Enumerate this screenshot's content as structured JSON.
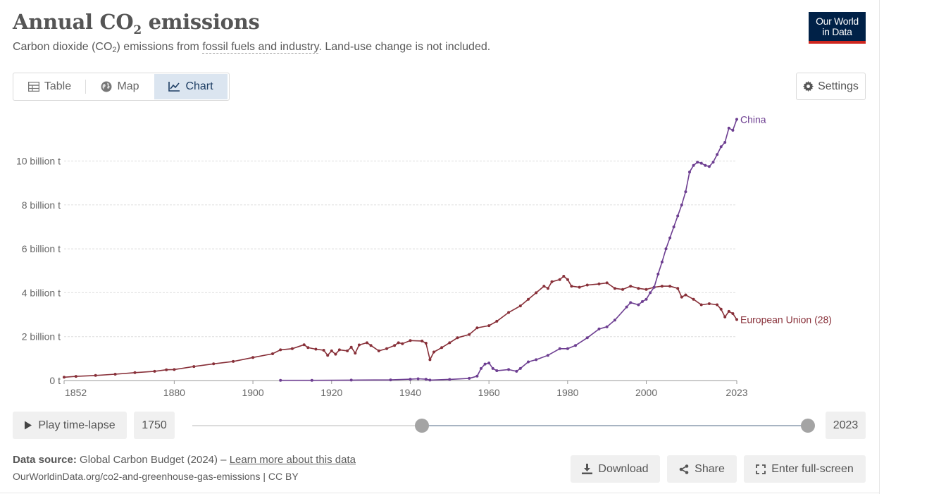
{
  "header": {
    "title_pre": "Annual CO",
    "title_sub": "2",
    "title_post": " emissions",
    "subtitle_pre": "Carbon dioxide (CO",
    "subtitle_sub": "2",
    "subtitle_mid": ") emissions from ",
    "subtitle_link": "fossil fuels and industry",
    "subtitle_post": ". Land-use change is not included.",
    "logo_line1": "Our World",
    "logo_line2": "in Data"
  },
  "tabs": [
    {
      "label": "Table",
      "icon": "table-icon"
    },
    {
      "label": "Map",
      "icon": "globe-icon"
    },
    {
      "label": "Chart",
      "icon": "line-chart-icon",
      "active": true
    }
  ],
  "settings_label": "Settings",
  "timeline": {
    "play_label": "Play time-lapse",
    "start_year": "1750",
    "end_year": "2023",
    "selected_start": 1852,
    "selected_end": 2023
  },
  "footer": {
    "source_label": "Data source:",
    "source_text": " Global Carbon Budget (2024) – ",
    "learn_more": "Learn more about this data",
    "url_text": "OurWorldinData.org/co2-and-greenhouse-gas-emissions | CC BY",
    "download_label": "Download",
    "share_label": "Share",
    "fullscreen_label": "Enter full-screen"
  },
  "colors": {
    "china": "#6d3e91",
    "eu": "#883039",
    "grid": "#dddddd",
    "active_tab": "#dbe5f0",
    "logo_bg": "#002147",
    "logo_accent": "#ce261e"
  },
  "chart_data": {
    "type": "line",
    "xlim": [
      1852,
      2023
    ],
    "ylim": [
      0,
      12000000000
    ],
    "y_ticks": [
      {
        "value": 0,
        "label": "0 t"
      },
      {
        "value": 2000000000,
        "label": "2 billion t"
      },
      {
        "value": 4000000000,
        "label": "4 billion t"
      },
      {
        "value": 6000000000,
        "label": "6 billion t"
      },
      {
        "value": 8000000000,
        "label": "8 billion t"
      },
      {
        "value": 10000000000,
        "label": "10 billion t"
      }
    ],
    "x_ticks": [
      1852,
      1880,
      1900,
      1920,
      1940,
      1960,
      1980,
      2000,
      2023
    ],
    "grid": true,
    "series": [
      {
        "name": "European Union (28)",
        "color": "#883039",
        "points": [
          [
            1852,
            0.15
          ],
          [
            1855,
            0.19
          ],
          [
            1860,
            0.23
          ],
          [
            1865,
            0.29
          ],
          [
            1870,
            0.36
          ],
          [
            1875,
            0.42
          ],
          [
            1878,
            0.49
          ],
          [
            1880,
            0.5
          ],
          [
            1885,
            0.64
          ],
          [
            1890,
            0.76
          ],
          [
            1895,
            0.87
          ],
          [
            1900,
            1.05
          ],
          [
            1905,
            1.22
          ],
          [
            1907,
            1.4
          ],
          [
            1910,
            1.45
          ],
          [
            1913,
            1.63
          ],
          [
            1914,
            1.5
          ],
          [
            1916,
            1.43
          ],
          [
            1918,
            1.38
          ],
          [
            1919,
            1.15
          ],
          [
            1920,
            1.35
          ],
          [
            1921,
            1.2
          ],
          [
            1922,
            1.4
          ],
          [
            1924,
            1.35
          ],
          [
            1925,
            1.52
          ],
          [
            1926,
            1.25
          ],
          [
            1927,
            1.62
          ],
          [
            1929,
            1.72
          ],
          [
            1930,
            1.6
          ],
          [
            1932,
            1.35
          ],
          [
            1934,
            1.45
          ],
          [
            1936,
            1.6
          ],
          [
            1937,
            1.72
          ],
          [
            1938,
            1.68
          ],
          [
            1940,
            1.82
          ],
          [
            1943,
            1.8
          ],
          [
            1944,
            1.7
          ],
          [
            1945,
            0.95
          ],
          [
            1946,
            1.3
          ],
          [
            1948,
            1.5
          ],
          [
            1950,
            1.72
          ],
          [
            1952,
            1.95
          ],
          [
            1955,
            2.1
          ],
          [
            1957,
            2.4
          ],
          [
            1960,
            2.5
          ],
          [
            1962,
            2.7
          ],
          [
            1965,
            3.1
          ],
          [
            1968,
            3.4
          ],
          [
            1970,
            3.7
          ],
          [
            1972,
            4.0
          ],
          [
            1974,
            4.3
          ],
          [
            1975,
            4.2
          ],
          [
            1976,
            4.5
          ],
          [
            1978,
            4.6
          ],
          [
            1979,
            4.75
          ],
          [
            1980,
            4.6
          ],
          [
            1981,
            4.3
          ],
          [
            1983,
            4.25
          ],
          [
            1985,
            4.35
          ],
          [
            1988,
            4.4
          ],
          [
            1990,
            4.45
          ],
          [
            1992,
            4.2
          ],
          [
            1994,
            4.15
          ],
          [
            1996,
            4.3
          ],
          [
            1998,
            4.2
          ],
          [
            2000,
            4.15
          ],
          [
            2002,
            4.25
          ],
          [
            2004,
            4.3
          ],
          [
            2006,
            4.3
          ],
          [
            2008,
            4.2
          ],
          [
            2009,
            3.8
          ],
          [
            2010,
            3.9
          ],
          [
            2012,
            3.7
          ],
          [
            2014,
            3.45
          ],
          [
            2016,
            3.5
          ],
          [
            2018,
            3.45
          ],
          [
            2019,
            3.25
          ],
          [
            2020,
            2.9
          ],
          [
            2021,
            3.15
          ],
          [
            2022,
            3.05
          ],
          [
            2023,
            2.78
          ]
        ]
      },
      {
        "name": "China",
        "color": "#6d3e91",
        "points": [
          [
            1907,
            0.01
          ],
          [
            1915,
            0.01
          ],
          [
            1925,
            0.02
          ],
          [
            1935,
            0.03
          ],
          [
            1940,
            0.06
          ],
          [
            1942,
            0.08
          ],
          [
            1944,
            0.06
          ],
          [
            1945,
            0.02
          ],
          [
            1950,
            0.05
          ],
          [
            1955,
            0.1
          ],
          [
            1957,
            0.2
          ],
          [
            1958,
            0.55
          ],
          [
            1959,
            0.75
          ],
          [
            1960,
            0.8
          ],
          [
            1961,
            0.55
          ],
          [
            1962,
            0.45
          ],
          [
            1965,
            0.5
          ],
          [
            1967,
            0.42
          ],
          [
            1968,
            0.55
          ],
          [
            1970,
            0.85
          ],
          [
            1972,
            0.95
          ],
          [
            1975,
            1.15
          ],
          [
            1978,
            1.45
          ],
          [
            1980,
            1.45
          ],
          [
            1982,
            1.6
          ],
          [
            1985,
            1.95
          ],
          [
            1988,
            2.35
          ],
          [
            1990,
            2.45
          ],
          [
            1992,
            2.75
          ],
          [
            1995,
            3.35
          ],
          [
            1996,
            3.55
          ],
          [
            1998,
            3.45
          ],
          [
            1999,
            3.6
          ],
          [
            2000,
            3.7
          ],
          [
            2001,
            4.0
          ],
          [
            2002,
            4.25
          ],
          [
            2003,
            4.85
          ],
          [
            2004,
            5.4
          ],
          [
            2005,
            6.0
          ],
          [
            2006,
            6.5
          ],
          [
            2007,
            7.0
          ],
          [
            2008,
            7.5
          ],
          [
            2009,
            8.0
          ],
          [
            2010,
            8.6
          ],
          [
            2011,
            9.5
          ],
          [
            2012,
            9.8
          ],
          [
            2013,
            9.95
          ],
          [
            2014,
            9.9
          ],
          [
            2015,
            9.8
          ],
          [
            2016,
            9.75
          ],
          [
            2017,
            9.95
          ],
          [
            2018,
            10.3
          ],
          [
            2019,
            10.65
          ],
          [
            2020,
            10.85
          ],
          [
            2021,
            11.5
          ],
          [
            2022,
            11.4
          ],
          [
            2023,
            11.9
          ]
        ]
      }
    ]
  }
}
